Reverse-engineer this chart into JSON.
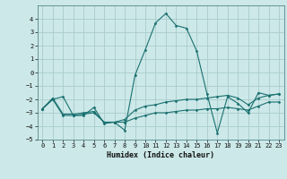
{
  "xlabel": "Humidex (Indice chaleur)",
  "bg_color": "#cce8e8",
  "grid_color": "#aacccc",
  "line_color": "#1a7070",
  "xlim": [
    -0.5,
    23.5
  ],
  "ylim": [
    -5,
    5
  ],
  "yticks": [
    -5,
    -4,
    -3,
    -2,
    -1,
    0,
    1,
    2,
    3,
    4
  ],
  "xticks": [
    0,
    1,
    2,
    3,
    4,
    5,
    6,
    7,
    8,
    9,
    10,
    11,
    12,
    13,
    14,
    15,
    16,
    17,
    18,
    19,
    20,
    21,
    22,
    23
  ],
  "line1_x": [
    0,
    1,
    2,
    3,
    4,
    5,
    6,
    7,
    8,
    9,
    10,
    11,
    12,
    13,
    14,
    15,
    16,
    17,
    18,
    19,
    20,
    21,
    22,
    23
  ],
  "line1_y": [
    -2.7,
    -2.0,
    -1.8,
    -3.2,
    -3.2,
    -2.6,
    -3.8,
    -3.7,
    -4.3,
    -0.2,
    1.7,
    3.7,
    4.4,
    3.5,
    3.3,
    1.6,
    -1.6,
    -4.5,
    -1.8,
    -2.3,
    -3.0,
    -1.5,
    -1.7,
    -1.6
  ],
  "line2_x": [
    0,
    1,
    2,
    3,
    4,
    5,
    6,
    7,
    8,
    9,
    10,
    11,
    12,
    13,
    14,
    15,
    16,
    17,
    18,
    19,
    20,
    21,
    22,
    23
  ],
  "line2_y": [
    -2.7,
    -2.0,
    -3.2,
    -3.2,
    -3.1,
    -3.0,
    -3.7,
    -3.7,
    -3.5,
    -2.8,
    -2.5,
    -2.4,
    -2.2,
    -2.1,
    -2.0,
    -2.0,
    -1.9,
    -1.8,
    -1.7,
    -1.9,
    -2.4,
    -1.9,
    -1.7,
    -1.6
  ],
  "line3_x": [
    0,
    1,
    2,
    3,
    4,
    5,
    6,
    7,
    8,
    9,
    10,
    11,
    12,
    13,
    14,
    15,
    16,
    17,
    18,
    19,
    20,
    21,
    22,
    23
  ],
  "line3_y": [
    -2.7,
    -1.9,
    -3.1,
    -3.1,
    -3.0,
    -2.9,
    -3.7,
    -3.7,
    -3.7,
    -3.4,
    -3.2,
    -3.0,
    -3.0,
    -2.9,
    -2.8,
    -2.8,
    -2.7,
    -2.7,
    -2.6,
    -2.7,
    -2.8,
    -2.5,
    -2.2,
    -2.2
  ],
  "tick_fontsize": 5,
  "xlabel_fontsize": 6,
  "xlabel_fontweight": "bold"
}
